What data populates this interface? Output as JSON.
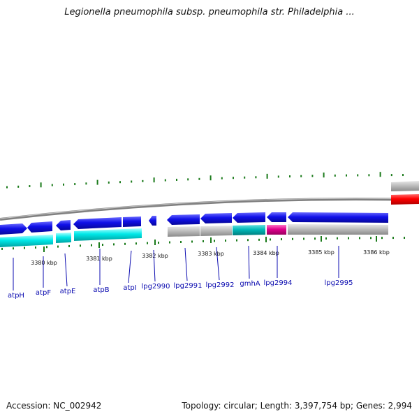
{
  "title": "Legionella pneumophila subsp. pneumophila str. Philadelphia ...",
  "footer": {
    "accession": "Accession: NC_002942",
    "summary": "Topology: circular; Length: 3,397,754 bp; Genes: 2,994"
  },
  "colors": {
    "gene_forward": "#1010e8",
    "gene_cyan": "#00e4e4",
    "gene_gray": "#b8b8b8",
    "gene_teal": "#00b8b8",
    "gene_magenta": "#e0008c",
    "gene_red": "#ff0000",
    "tick": "#1a7a1a",
    "label": "#0b0bb0",
    "backbone": "#808080"
  },
  "scale_ticks": [
    {
      "label": "3380 kbp"
    },
    {
      "label": "3381 kbp"
    },
    {
      "label": "3382 kbp"
    },
    {
      "label": "3383 kbp"
    },
    {
      "label": "3384 kbp"
    },
    {
      "label": "3385 kbp"
    },
    {
      "label": "3386 kbp"
    }
  ],
  "genes": [
    {
      "name": "atpH"
    },
    {
      "name": "atpF"
    },
    {
      "name": "atpE"
    },
    {
      "name": "atpB"
    },
    {
      "name": "atpI"
    },
    {
      "name": "lpg2990"
    },
    {
      "name": "lpg2991"
    },
    {
      "name": "lpg2992"
    },
    {
      "name": "gmhA"
    },
    {
      "name": "lpg2994"
    },
    {
      "name": "lpg2995"
    }
  ]
}
